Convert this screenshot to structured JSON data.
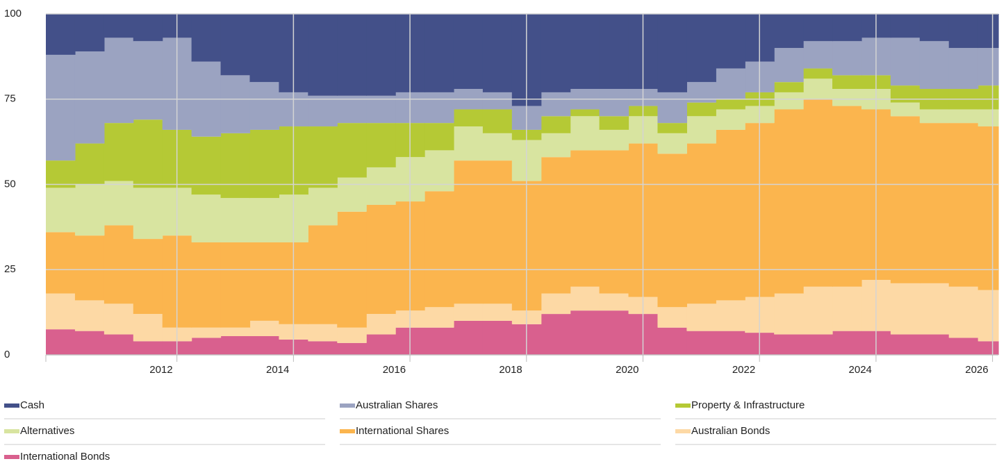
{
  "chart_data": {
    "type": "stacked-area-step",
    "x": [
      2009.75,
      2010.25,
      2010.75,
      2011.25,
      2011.75,
      2012.25,
      2012.75,
      2013.25,
      2013.75,
      2014.25,
      2014.75,
      2015.25,
      2015.75,
      2016.25,
      2016.75,
      2017.25,
      2017.75,
      2018.25,
      2018.75,
      2019.25,
      2019.75,
      2020.25,
      2020.75,
      2021.25,
      2021.75,
      2022.25,
      2022.75,
      2023.25,
      2023.75,
      2024.25,
      2024.75,
      2025.25,
      2025.75
    ],
    "xlim": [
      2009.75,
      2026.1
    ],
    "xticks": [
      2012,
      2014,
      2016,
      2018,
      2020,
      2022,
      2024,
      2026
    ],
    "ylim": [
      0,
      100
    ],
    "yticks": [
      0,
      25,
      50,
      75,
      100
    ],
    "grid": true,
    "legend": "bottom",
    "series": [
      {
        "name": "Cash",
        "color": "#435089",
        "values": [
          12,
          11,
          7,
          8,
          7,
          14,
          18,
          20,
          23,
          24,
          24,
          24,
          23,
          23,
          22,
          23,
          27,
          23,
          22,
          22,
          22,
          23,
          20,
          16,
          14,
          10,
          8,
          8,
          7,
          7,
          8,
          10,
          10
        ]
      },
      {
        "name": "Australian Shares",
        "color": "#9ba3c1",
        "values": [
          31,
          27,
          25,
          23,
          27,
          22,
          17,
          14,
          10,
          9,
          8,
          8,
          9,
          9,
          6,
          5,
          7,
          7,
          6,
          8,
          5,
          9,
          6,
          9,
          9,
          10,
          8,
          10,
          11,
          14,
          14,
          12,
          11
        ]
      },
      {
        "name": "Property & Infrastructure",
        "color": "#b5c935",
        "values": [
          8,
          12,
          17,
          20,
          17,
          17,
          19,
          20,
          20,
          18,
          16,
          13,
          10,
          8,
          5,
          7,
          3,
          5,
          2,
          4,
          3,
          3,
          4,
          3,
          4,
          3,
          3,
          4,
          4,
          5,
          6,
          6,
          7
        ]
      },
      {
        "name": "Alternatives",
        "color": "#d8e4a0",
        "values": [
          13,
          15,
          13,
          15,
          14,
          14,
          13,
          13,
          14,
          11,
          10,
          11,
          13,
          12,
          10,
          8,
          12,
          7,
          10,
          6,
          8,
          6,
          8,
          6,
          5,
          5,
          6,
          5,
          6,
          4,
          4,
          4,
          5
        ]
      },
      {
        "name": "International Shares",
        "color": "#fbb54e",
        "values": [
          18,
          19,
          23,
          22,
          27,
          25,
          25,
          23,
          24,
          29,
          34,
          32,
          32,
          34,
          42,
          42,
          38,
          40,
          40,
          42,
          45,
          45,
          47,
          50,
          51,
          54,
          55,
          53,
          50,
          49,
          47,
          48,
          48
        ]
      },
      {
        "name": "Australian Bonds",
        "color": "#fdd9a5",
        "values": [
          10.5,
          9,
          9,
          8,
          4,
          3,
          2.5,
          4.5,
          4.5,
          5,
          4.5,
          6,
          5,
          6,
          5,
          5,
          4,
          6,
          7,
          5,
          5,
          6,
          8,
          9,
          10.5,
          12,
          14,
          13,
          15,
          15,
          15,
          15,
          15
        ]
      },
      {
        "name": "International Bonds",
        "color": "#d9608e",
        "values": [
          7.5,
          7,
          6,
          4,
          4,
          5,
          5.5,
          5.5,
          4.5,
          4,
          3.5,
          6,
          8,
          8,
          10,
          10,
          9,
          12,
          13,
          13,
          12,
          8,
          7,
          7,
          6.5,
          6,
          6,
          7,
          7,
          6,
          6,
          5,
          4
        ]
      }
    ]
  }
}
